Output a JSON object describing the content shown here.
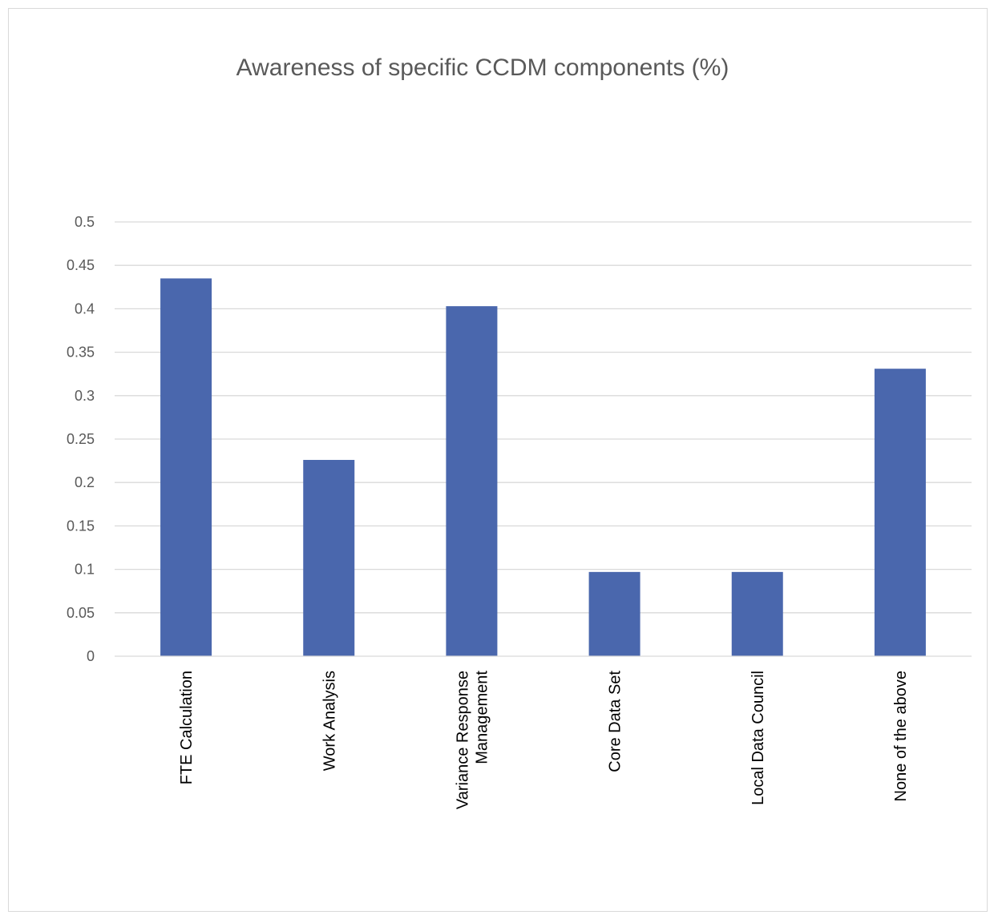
{
  "chart_data": {
    "type": "bar",
    "title": "Awareness of specific CCDM components  (%)",
    "xlabel": "",
    "ylabel": "",
    "categories": [
      [
        "FTE Calculation"
      ],
      [
        "Work Analysis"
      ],
      [
        "Variance Response",
        "Management"
      ],
      [
        "Core Data Set"
      ],
      [
        "Local Data Council"
      ],
      [
        "None of the above"
      ]
    ],
    "values": [
      0.435,
      0.226,
      0.403,
      0.097,
      0.097,
      0.331
    ],
    "ylim": [
      0,
      0.5
    ],
    "yticks": [
      "0",
      "0.05",
      "0.1",
      "0.15",
      "0.2",
      "0.25",
      "0.3",
      "0.35",
      "0.4",
      "0.45",
      "0.5"
    ],
    "grid": true,
    "legend": "none",
    "colors": {
      "bar": "#4a67ad",
      "grid": "#d9d9d9",
      "axis": "#d9d9d9"
    }
  }
}
